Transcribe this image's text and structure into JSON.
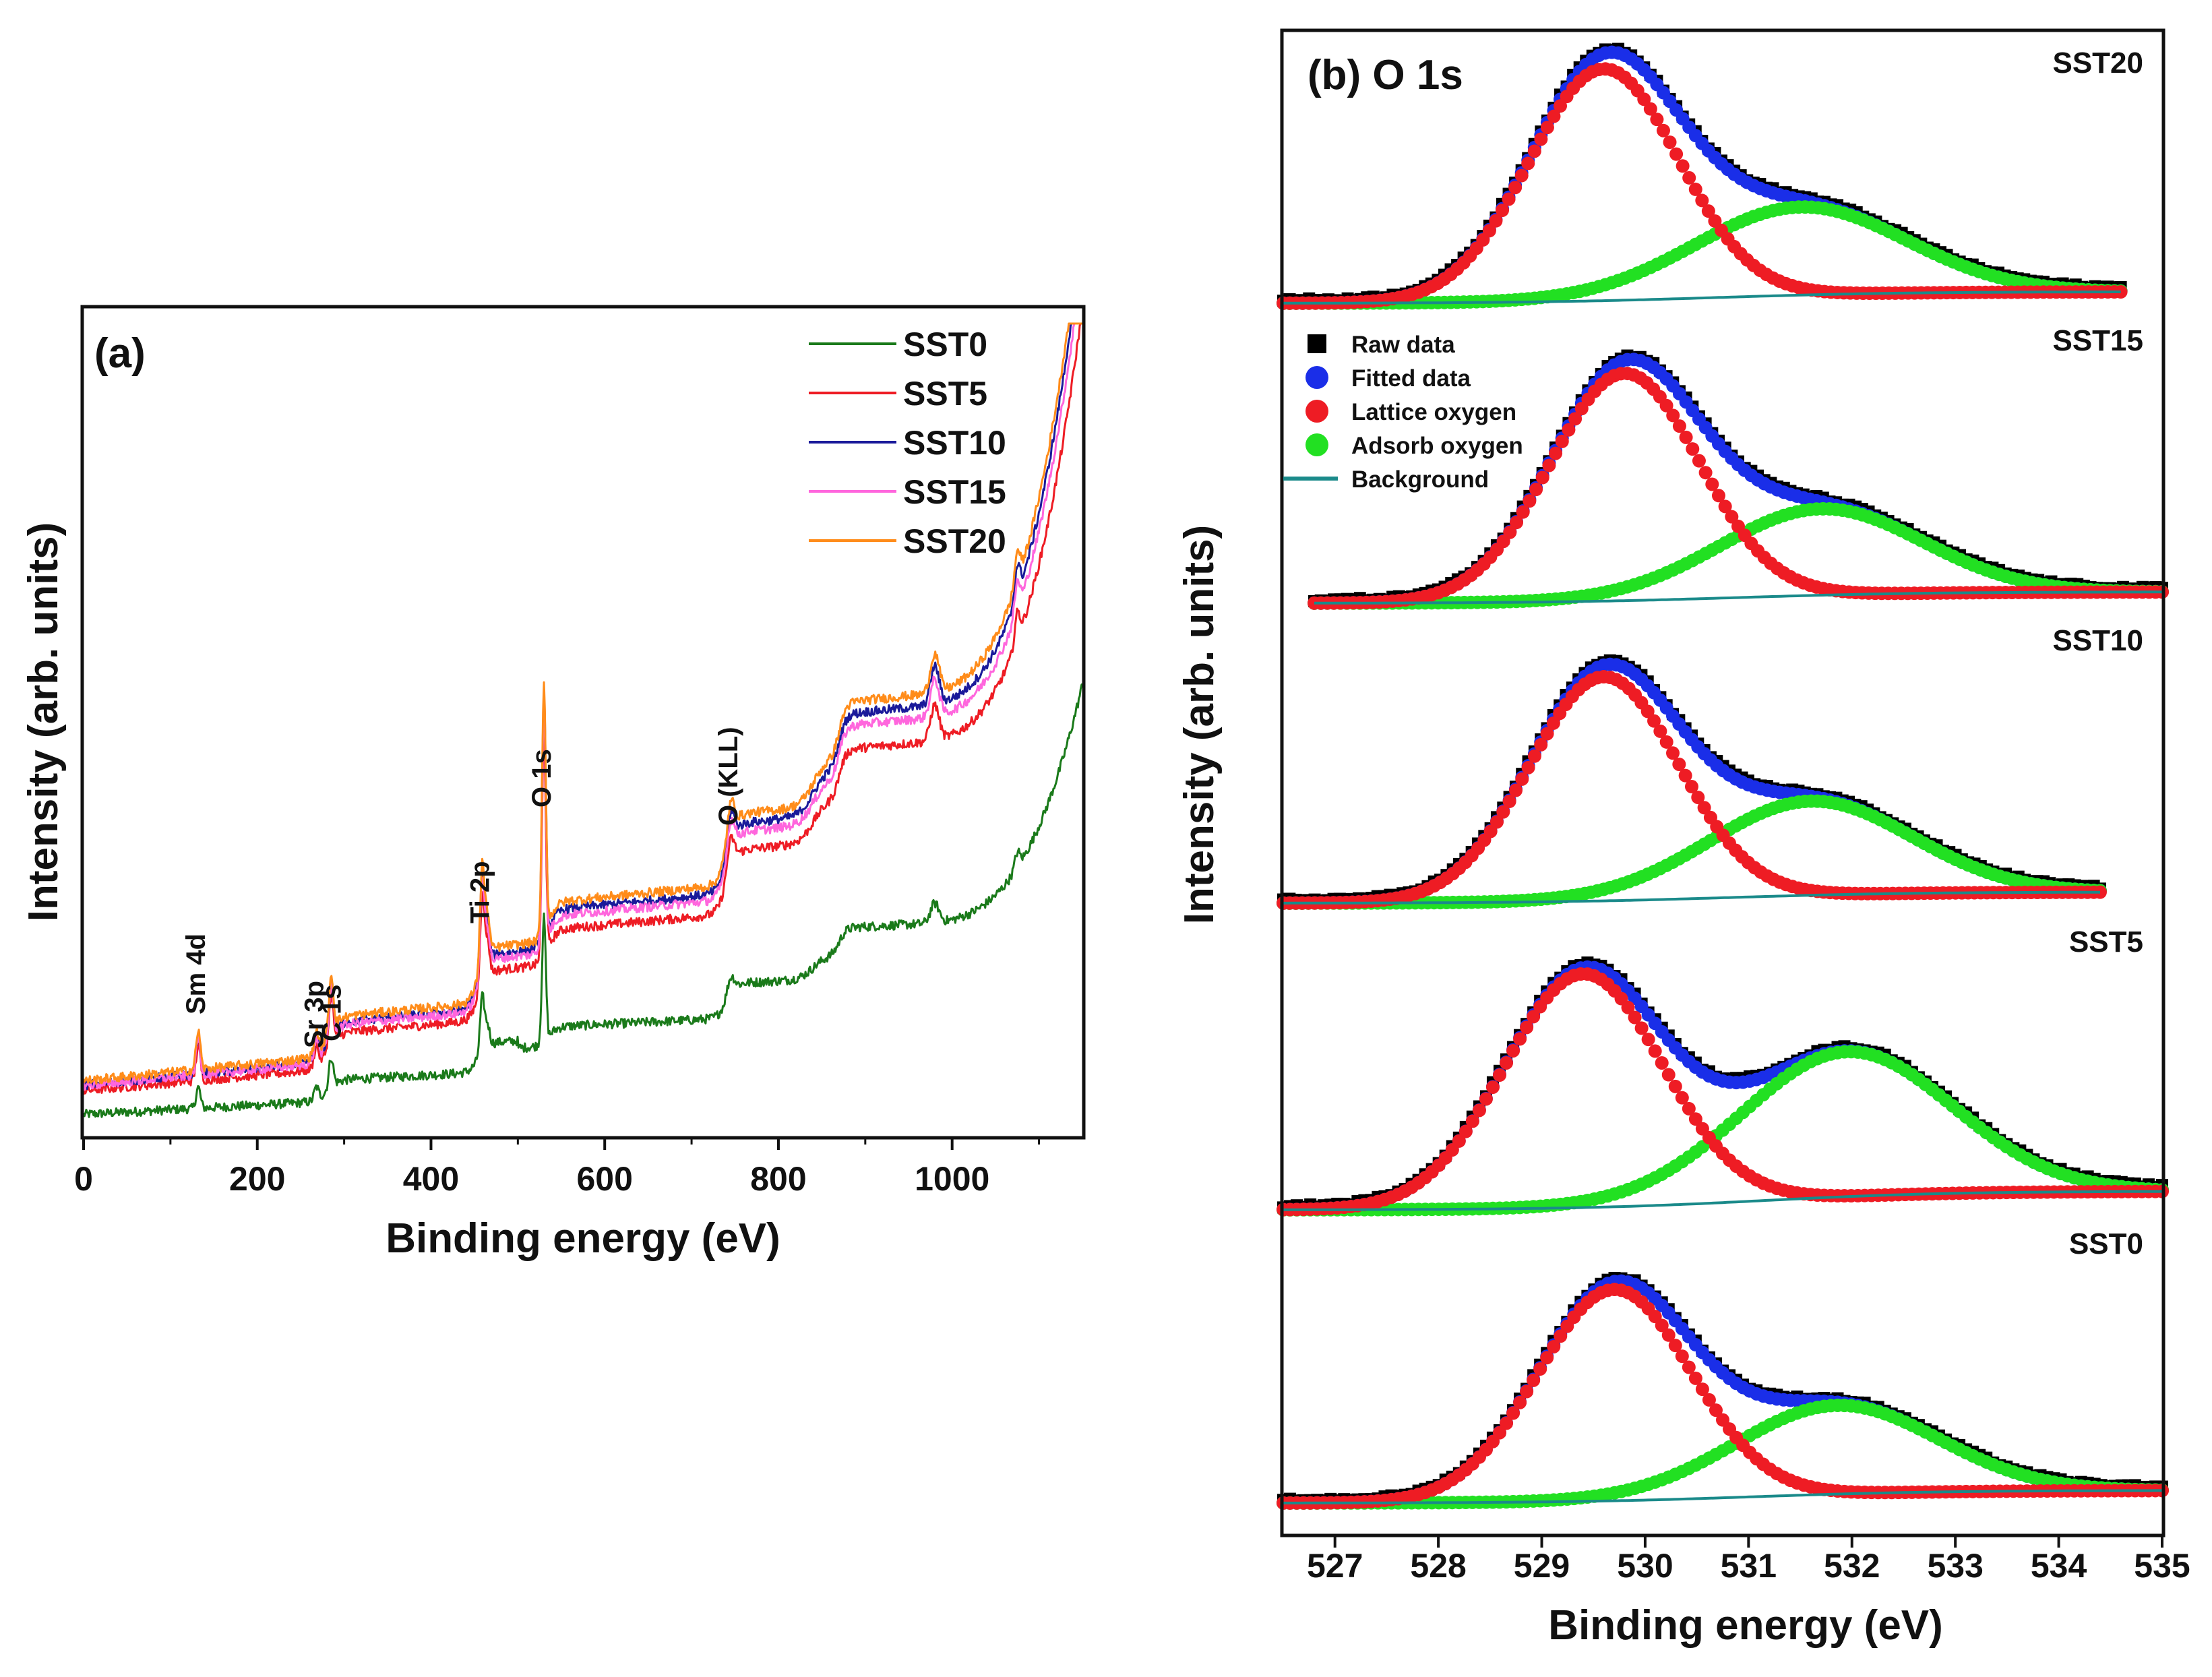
{
  "chart_data": [
    {
      "panel": "(a)",
      "type": "line",
      "title": "(a)",
      "xlabel": "Binding energy (eV)",
      "ylabel": "Intensity (arb. units)",
      "xlim": [
        0,
        1150
      ],
      "xticks": [
        0,
        200,
        400,
        600,
        800,
        1000
      ],
      "yticks": [],
      "grid": false,
      "legend_position": "top-right",
      "series": [
        {
          "name": "SST0",
          "color": "#1a7a1a",
          "offset": 0.0,
          "scale": 0.55
        },
        {
          "name": "SST5",
          "color": "#ee1c24",
          "offset": 0.02,
          "scale": 0.92
        },
        {
          "name": "SST10",
          "color": "#1a1a9a",
          "offset": 0.025,
          "scale": 1.0
        },
        {
          "name": "SST15",
          "color": "#ff66dd",
          "offset": 0.025,
          "scale": 0.97
        },
        {
          "name": "SST20",
          "color": "#ff8c1a",
          "offset": 0.03,
          "scale": 1.02
        }
      ],
      "annotations": [
        {
          "text": "Sm 4d",
          "x": 132
        },
        {
          "text": "Sr 3p",
          "x": 268
        },
        {
          "text": "C 1s",
          "x": 285
        },
        {
          "text": "Ti 2p",
          "x": 459
        },
        {
          "text": "O 1s",
          "x": 530
        },
        {
          "text": "O (KLL)",
          "x": 745
        }
      ]
    },
    {
      "panel": "(b)",
      "type": "scatter",
      "title": "(b) O 1s",
      "xlabel": "Binding energy (eV)",
      "ylabel": "Intensity (arb. units)",
      "xlim": [
        526.5,
        535
      ],
      "xticks": [
        527,
        528,
        529,
        530,
        531,
        532,
        533,
        534,
        535
      ],
      "yticks": [],
      "grid": false,
      "legend_position": "upper-left of SST15 band",
      "legend": [
        {
          "label": "Raw data",
          "color": "#000000",
          "marker": "square"
        },
        {
          "label": "Fitted data",
          "color": "#1a2ee8",
          "marker": "circle"
        },
        {
          "label": "Lattice oxygen",
          "color": "#ee1c24",
          "marker": "circle"
        },
        {
          "label": "Adsorb oxygen",
          "color": "#22e022",
          "marker": "circle"
        },
        {
          "label": "Background",
          "color": "#1a8a8a",
          "marker": "line"
        }
      ],
      "spectra": [
        {
          "sample": "SST20",
          "x_start": 526.5,
          "x_end": 534.6,
          "lattice_center": 529.6,
          "lattice_fwhm": 1.7,
          "lattice_height": 1.0,
          "adsorb_center": 531.5,
          "adsorb_fwhm": 2.4,
          "adsorb_height": 0.38,
          "background_rise": 0.05
        },
        {
          "sample": "SST15",
          "x_start": 526.8,
          "x_end": 535.0,
          "lattice_center": 529.8,
          "lattice_fwhm": 1.7,
          "lattice_height": 1.0,
          "adsorb_center": 531.7,
          "adsorb_fwhm": 2.3,
          "adsorb_height": 0.38,
          "background_rise": 0.05
        },
        {
          "sample": "SST10",
          "x_start": 526.5,
          "x_end": 534.4,
          "lattice_center": 529.6,
          "lattice_fwhm": 1.7,
          "lattice_height": 1.0,
          "adsorb_center": 531.6,
          "adsorb_fwhm": 2.3,
          "adsorb_height": 0.42,
          "background_rise": 0.05
        },
        {
          "sample": "SST5",
          "x_start": 526.5,
          "x_end": 535.0,
          "lattice_center": 529.4,
          "lattice_fwhm": 1.8,
          "lattice_height": 1.0,
          "adsorb_center": 531.95,
          "adsorb_fwhm": 2.4,
          "adsorb_height": 0.62,
          "background_rise": 0.08
        },
        {
          "sample": "SST0",
          "x_start": 526.5,
          "x_end": 535.0,
          "lattice_center": 529.7,
          "lattice_fwhm": 1.75,
          "lattice_height": 1.0,
          "adsorb_center": 531.85,
          "adsorb_fwhm": 2.3,
          "adsorb_height": 0.42,
          "background_rise": 0.06
        }
      ]
    }
  ]
}
